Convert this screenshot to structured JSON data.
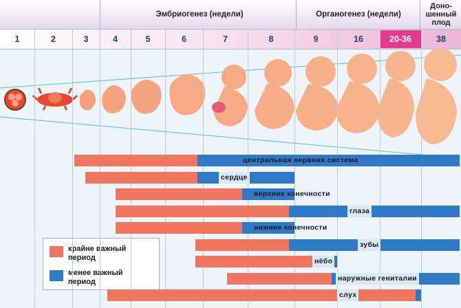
{
  "header": {
    "embryo_label": "Эмбриогенез (недели)",
    "organo_label": "Органогенез (недели)",
    "full_term_line1": "Доно-",
    "full_term_line2": "шенный",
    "full_term_line3": "плод"
  },
  "weeks": [
    "1",
    "2",
    "3",
    "4",
    "5",
    "6",
    "7",
    "8",
    "9",
    "16",
    "20-36",
    "38"
  ],
  "bars": [
    {
      "label": "центральная нервная система",
      "critical_from_week": "3",
      "critical_to_week": "6",
      "less_to_week": "38"
    },
    {
      "label": "сердце",
      "critical_from_week": "3",
      "critical_to_week": "6",
      "less_to_week": "8"
    },
    {
      "label": "верхние конечности",
      "critical_from_week": "4",
      "critical_to_week": "7",
      "less_to_week": "8"
    },
    {
      "label": "глаза",
      "critical_from_week": "4",
      "critical_to_week": "8",
      "less_to_week": "38"
    },
    {
      "label": "нижние конечности",
      "critical_from_week": "4",
      "critical_to_week": "7",
      "less_to_week": "8"
    },
    {
      "label": "зубы",
      "critical_from_week": "6",
      "critical_to_week": "8",
      "less_to_week": "38"
    },
    {
      "label": "нёбо",
      "critical_from_week": "6",
      "critical_to_week": "9",
      "less_to_week": "9"
    },
    {
      "label": "наружные гениталии",
      "critical_from_week": "7",
      "critical_to_week": "9",
      "less_to_week": "38"
    },
    {
      "label": "слух",
      "critical_from_week": "4",
      "critical_to_week": "20-36",
      "less_to_week": "20-36"
    }
  ],
  "legend": {
    "critical_line1": "крайне важный",
    "critical_line2": "период",
    "less_line1": "менее важный",
    "less_line2": "период"
  },
  "colors": {
    "critical": "#f07660",
    "less_critical": "#2f79c6",
    "header_band": "#e9ddf0",
    "week_row": "#f3e4ef"
  }
}
